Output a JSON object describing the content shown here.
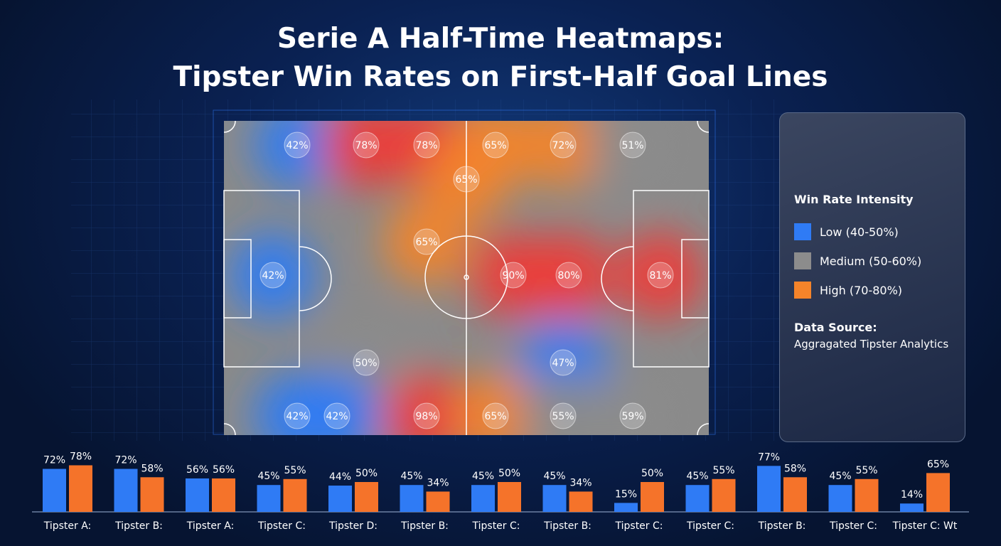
{
  "chart_data": [
    {
      "type": "heatmap",
      "title": "Serie A Half-Time Heatmaps:\nTipster Win Rates on First-Half Goal Lines",
      "values": [
        42,
        78,
        78,
        65,
        72,
        51,
        65,
        65,
        42,
        90,
        80,
        81,
        50,
        47,
        42,
        42,
        98,
        65,
        55,
        59
      ],
      "value_labels": [
        "42%",
        "78%",
        "78%",
        "65%",
        "72%",
        "51%",
        "65%",
        "65%",
        "42%",
        "90%",
        "80%",
        "81%",
        "50%",
        "47%",
        "42%",
        "42%",
        "98%",
        "65%",
        "55%",
        "59%"
      ],
      "legend": {
        "title": "Win Rate Intensity",
        "items": [
          {
            "name": "Low (40-50%)",
            "color": "#2f7bf5"
          },
          {
            "name": "Medium (50-60%)",
            "color": "#8c8c8c"
          },
          {
            "name": "High (70-80%)",
            "color": "#f5842a"
          }
        ]
      },
      "source_label": "Data Source:",
      "source": "Aggragated Tipster Analytics"
    },
    {
      "type": "bar",
      "categories": [
        "Tipster A:",
        "Tipster B:",
        "Tipster A:",
        "Tipster C:",
        "Tipster D:",
        "Tipster B:",
        "Tipster C:",
        "Tipster B:",
        "Tipster C:",
        "Tipster C:",
        "Tipster B:",
        "Tipster C:",
        "Tipster C: Wt"
      ],
      "series": [
        {
          "color": "#2f7bf5",
          "values": [
            72,
            72,
            56,
            45,
            44,
            45,
            45,
            45,
            15,
            45,
            77,
            45,
            14
          ],
          "value_labels": [
            "72%",
            "72%",
            "56%",
            "45%",
            "44%",
            "45%",
            "45%",
            "45%",
            "15%",
            "45%",
            "77%",
            "45%",
            "14%"
          ]
        },
        {
          "color": "#f5732a",
          "values": [
            78,
            58,
            56,
            55,
            50,
            34,
            50,
            34,
            50,
            55,
            58,
            55,
            65
          ],
          "value_labels": [
            "78%",
            "58%",
            "56%",
            "55%",
            "50%",
            "34%",
            "50%",
            "34%",
            "50%",
            "55%",
            "58%",
            "55%",
            "65%"
          ]
        }
      ]
    }
  ]
}
